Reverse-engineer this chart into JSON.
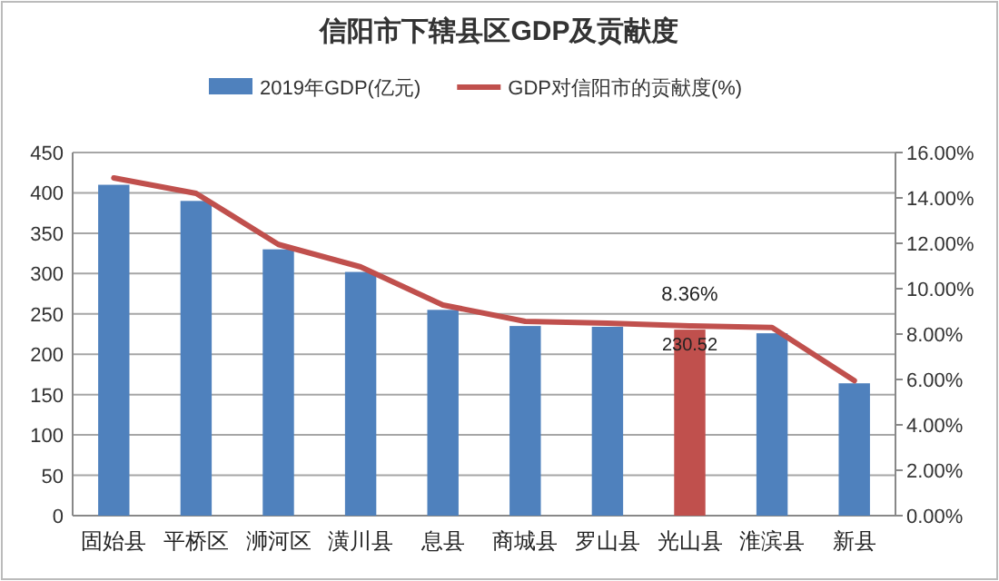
{
  "chart_data": {
    "type": "bar",
    "title": "信阳市下辖县区GDP及贡献度",
    "categories": [
      "固始县",
      "平桥区",
      "浉河区",
      "潢川县",
      "息县",
      "商城县",
      "罗山县",
      "光山县",
      "淮滨县",
      "新县"
    ],
    "series": [
      {
        "name": "2019年GDP(亿元)",
        "color": "#4f81bd",
        "colors": [
          "#4f81bd",
          "#4f81bd",
          "#4f81bd",
          "#4f81bd",
          "#4f81bd",
          "#4f81bd",
          "#4f81bd",
          "#c0504d",
          "#4f81bd",
          "#4f81bd"
        ],
        "values": [
          410,
          390,
          330,
          302,
          255,
          235,
          234,
          230.52,
          226,
          164
        ],
        "value_labels": [
          null,
          null,
          null,
          null,
          null,
          null,
          null,
          "230.52",
          null,
          null
        ]
      },
      {
        "name": "GDP对信阳市的贡献度(%)",
        "type": "line",
        "color": "#c0504d",
        "axis": "y2",
        "values": [
          14.88,
          14.2,
          11.95,
          10.96,
          9.28,
          8.56,
          8.48,
          8.36,
          8.29,
          5.95
        ],
        "value_labels": [
          null,
          null,
          null,
          null,
          null,
          null,
          null,
          "8.36%",
          null,
          null
        ]
      }
    ],
    "ylim": [
      0,
      450
    ],
    "yticks": [
      0,
      50,
      100,
      150,
      200,
      250,
      300,
      350,
      400,
      450
    ],
    "y2lim": [
      0,
      16
    ],
    "y2ticks": [
      {
        "value": 0,
        "label": "0.00%"
      },
      {
        "value": 2,
        "label": "2.00%"
      },
      {
        "value": 4,
        "label": "4.00%"
      },
      {
        "value": 6,
        "label": "6.00%"
      },
      {
        "value": 8,
        "label": "8.00%"
      },
      {
        "value": 10,
        "label": "10.00%"
      },
      {
        "value": 12,
        "label": "12.00%"
      },
      {
        "value": 14,
        "label": "14.00%"
      },
      {
        "value": 16,
        "label": "16.00%"
      }
    ],
    "grid": "y",
    "legend": "top"
  }
}
